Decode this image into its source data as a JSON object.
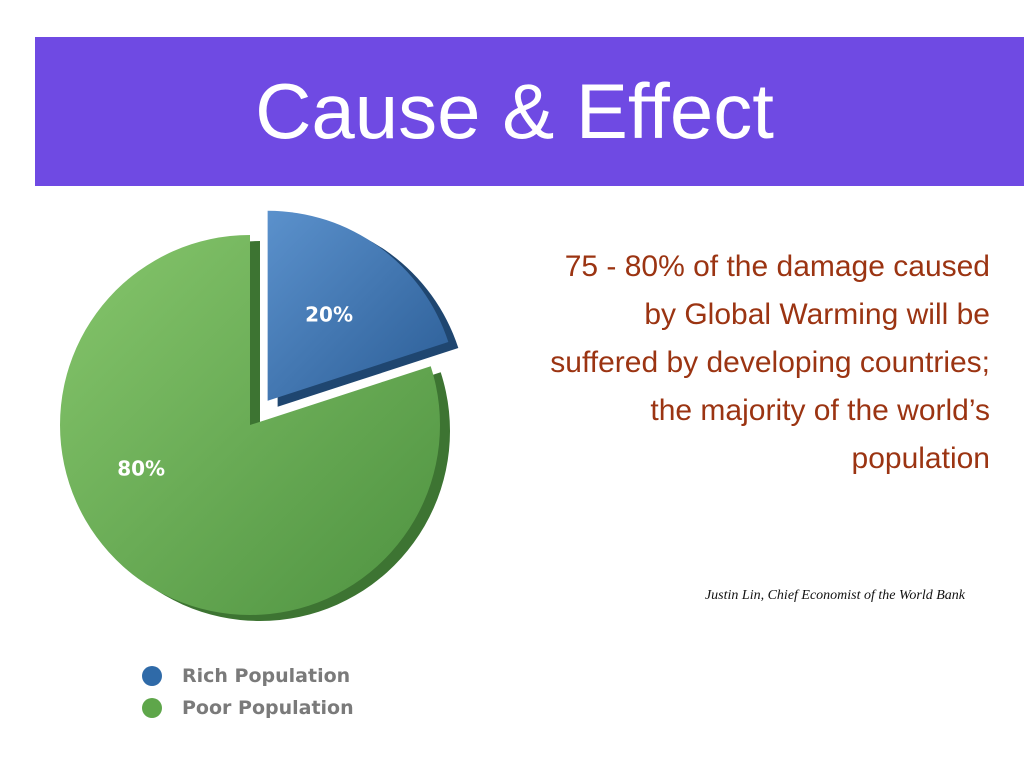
{
  "slide": {
    "title": "Cause & Effect",
    "quote": "75 - 80% of the damage caused by Global Warming will be suffered by developing countries; the majority of the world’s population",
    "attribution": "Justin Lin, Chief Economist of the World Bank"
  },
  "colors": {
    "title_background": "#6f4ae3",
    "quote_text": "#9b3412",
    "rich": "#2f6aa8",
    "poor": "#5ea64a"
  },
  "chart_data": {
    "type": "pie",
    "categories": [
      "Rich Population",
      "Poor Population"
    ],
    "values": [
      20,
      80
    ],
    "labels": [
      "20%",
      "80%"
    ],
    "exploded": [
      true,
      false
    ],
    "legend": [
      {
        "label": "Rich Population",
        "color": "#2f6aa8"
      },
      {
        "label": "Poor Population",
        "color": "#5ea64a"
      }
    ],
    "legend_position": "bottom-left"
  }
}
